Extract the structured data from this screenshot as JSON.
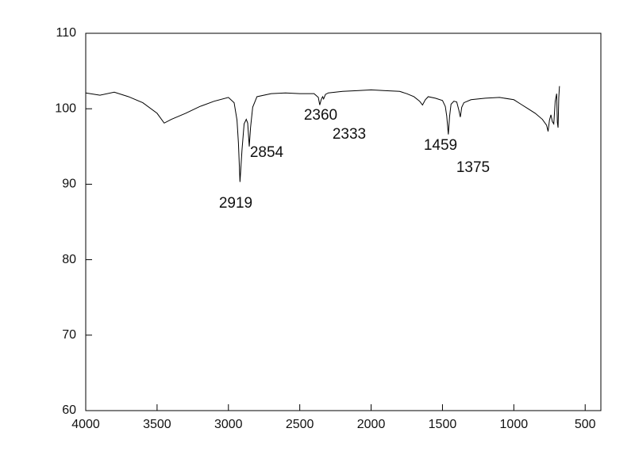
{
  "chart_data": {
    "type": "line",
    "x": [
      4000,
      3900,
      3800,
      3700,
      3600,
      3500,
      3450,
      3400,
      3300,
      3200,
      3100,
      3000,
      2960,
      2940,
      2930,
      2919,
      2905,
      2890,
      2875,
      2865,
      2854,
      2845,
      2830,
      2800,
      2700,
      2600,
      2500,
      2400,
      2370,
      2360,
      2350,
      2340,
      2333,
      2320,
      2300,
      2200,
      2100,
      2000,
      1900,
      1800,
      1750,
      1700,
      1660,
      1640,
      1620,
      1600,
      1550,
      1500,
      1480,
      1470,
      1459,
      1450,
      1440,
      1420,
      1400,
      1385,
      1375,
      1365,
      1350,
      1300,
      1200,
      1100,
      1000,
      950,
      900,
      850,
      800,
      770,
      760,
      750,
      740,
      730,
      720,
      710,
      700,
      695,
      690,
      685,
      680
    ],
    "series": [
      {
        "color": "#000000",
        "values": [
          102.1,
          101.8,
          102.2,
          101.6,
          100.8,
          99.4,
          98.1,
          98.6,
          99.4,
          100.3,
          101.0,
          101.5,
          100.8,
          98.5,
          95.5,
          90.3,
          94.5,
          98.0,
          98.6,
          98.1,
          95.0,
          97.5,
          100.2,
          101.6,
          102.0,
          102.1,
          102.0,
          102.0,
          101.5,
          100.5,
          101.2,
          101.6,
          101.3,
          101.9,
          102.1,
          102.3,
          102.4,
          102.5,
          102.4,
          102.3,
          102.0,
          101.6,
          101.0,
          100.5,
          101.2,
          101.6,
          101.4,
          101.1,
          100.3,
          99.0,
          96.6,
          99.0,
          100.6,
          101.0,
          100.9,
          99.8,
          98.9,
          100.2,
          100.8,
          101.2,
          101.4,
          101.5,
          101.2,
          100.6,
          100.0,
          99.4,
          98.6,
          97.8,
          97.0,
          98.5,
          99.2,
          98.3,
          98.0,
          101.0,
          102.0,
          98.2,
          97.5,
          101.5,
          103.0
        ]
      }
    ],
    "xlim": [
      4000,
      390
    ],
    "ylim": [
      60,
      110
    ],
    "xticks": [
      4000,
      3500,
      3000,
      2500,
      2000,
      1500,
      1000,
      500
    ],
    "yticks": [
      60,
      70,
      80,
      90,
      100,
      110
    ],
    "annotations": [
      "2919",
      "2854",
      "2360",
      "2333",
      "1459",
      "1375"
    ]
  }
}
